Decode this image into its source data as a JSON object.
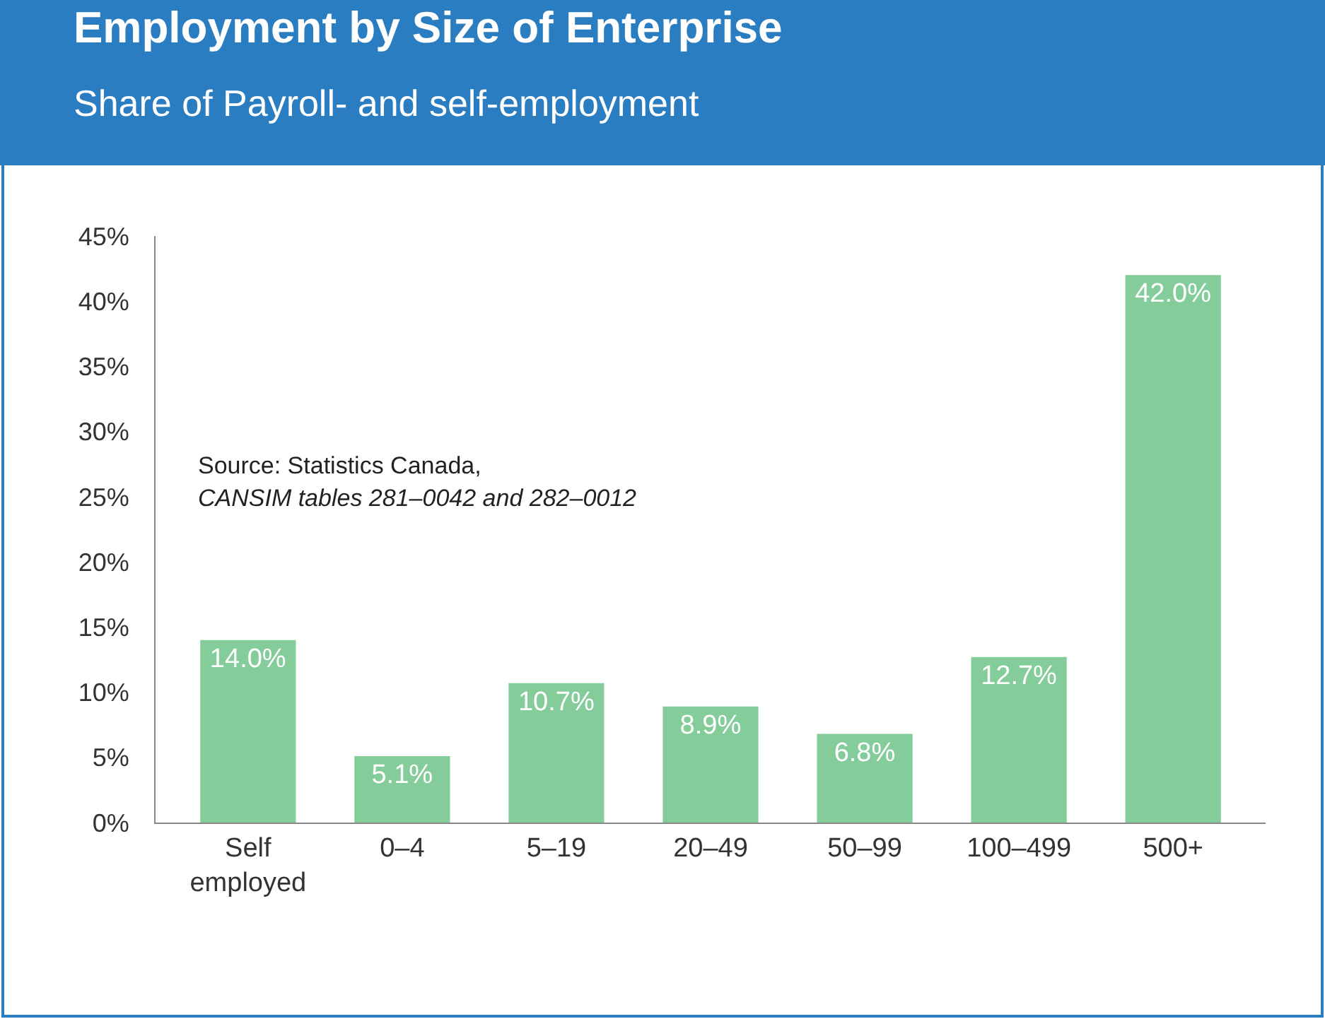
{
  "chart_data": {
    "type": "bar",
    "title": "Employment by Size of Enterprise",
    "subtitle": "Share of Payroll- and self-employment",
    "categories": [
      "Self employed",
      "0–4",
      "5–19",
      "20–49",
      "50–99",
      "100–499",
      "500+"
    ],
    "values": [
      14.0,
      5.1,
      10.7,
      8.9,
      6.8,
      12.7,
      42.0
    ],
    "value_labels": [
      "14.0%",
      "5.1%",
      "10.7%",
      "8.9%",
      "6.8%",
      "12.7%",
      "42.0%"
    ],
    "color": "#84cc9a",
    "ylim": [
      0,
      45
    ],
    "yticks": [
      {
        "value": 0,
        "label": "0%"
      },
      {
        "value": 5,
        "label": "5%"
      },
      {
        "value": 10,
        "label": "10%"
      },
      {
        "value": 15,
        "label": "15%"
      },
      {
        "value": 20,
        "label": "20%"
      },
      {
        "value": 25,
        "label": "25%"
      },
      {
        "value": 30,
        "label": "30%"
      },
      {
        "value": 35,
        "label": "35%"
      },
      {
        "value": 40,
        "label": "40%"
      },
      {
        "value": 45,
        "label": "45%"
      }
    ],
    "grid": false,
    "annotations": [
      "Source: Statistics Canada,",
      "CANSIM tables 281–0042 and 282–0012"
    ]
  }
}
